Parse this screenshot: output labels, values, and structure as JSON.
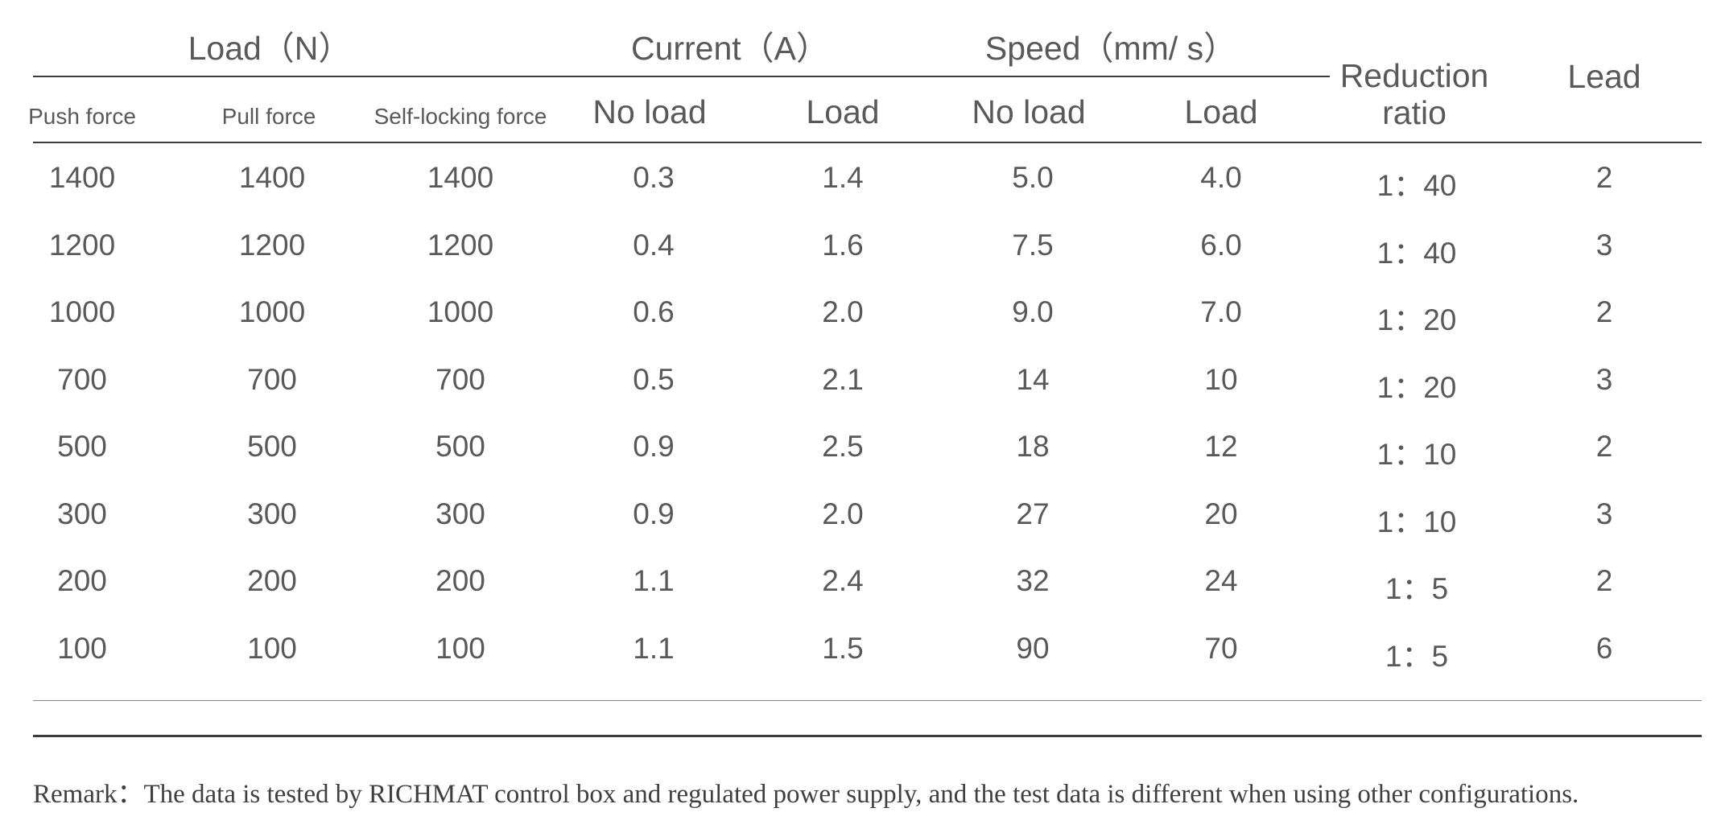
{
  "header": {
    "groups": {
      "load": "Load（N）",
      "current": "Current（A）",
      "speed": "Speed（mm/ s）",
      "reduction_ratio_line1": "Reduction",
      "reduction_ratio_line2": "ratio",
      "lead": "Lead"
    },
    "subcolumns": {
      "push_force": "Push force",
      "pull_force": "Pull force",
      "self_locking_force": "Self-locking force",
      "current_no_load": "No load",
      "current_load": "Load",
      "speed_no_load": "No load",
      "speed_load": "Load"
    }
  },
  "rows": [
    [
      "1400",
      "1400",
      "1400",
      "0.3",
      "1.4",
      "5.0",
      "4.0",
      "1：40",
      "2"
    ],
    [
      "1200",
      "1200",
      "1200",
      "0.4",
      "1.6",
      "7.5",
      "6.0",
      "1：40",
      "3"
    ],
    [
      "1000",
      "1000",
      "1000",
      "0.6",
      "2.0",
      "9.0",
      "7.0",
      "1：20",
      "2"
    ],
    [
      "700",
      "700",
      "700",
      "0.5",
      "2.1",
      "14",
      "10",
      "1：20",
      "3"
    ],
    [
      "500",
      "500",
      "500",
      "0.9",
      "2.5",
      "18",
      "12",
      "1：10",
      "2"
    ],
    [
      "300",
      "300",
      "300",
      "0.9",
      "2.0",
      "27",
      "20",
      "1：10",
      "3"
    ],
    [
      "200",
      "200",
      "200",
      "1.1",
      "2.4",
      "32",
      "24",
      "1：5",
      "2"
    ],
    [
      "100",
      "100",
      "100",
      "1.1",
      "1.5",
      "90",
      "70",
      "1：5",
      "6"
    ]
  ],
  "remark": "Remark：The data is tested by RICHMAT control box and regulated power supply, and the test data is different when using other configurations."
}
